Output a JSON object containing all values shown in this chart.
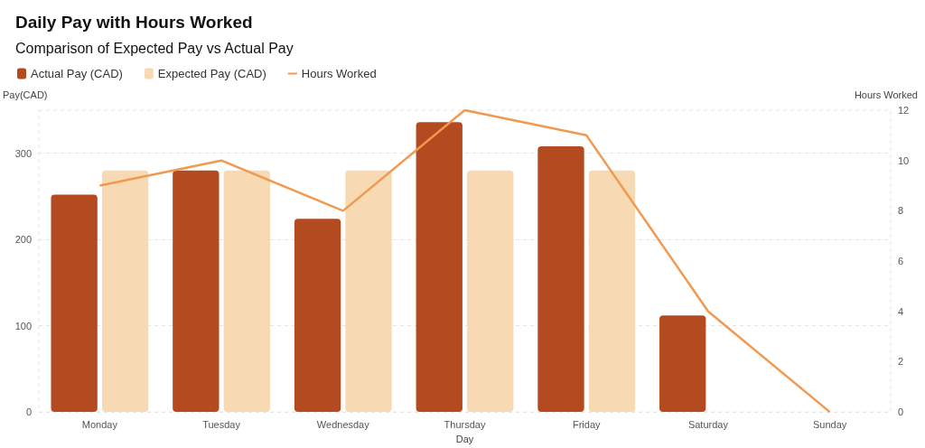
{
  "chart_data": {
    "type": "bar",
    "title": "Daily Pay with Hours Worked",
    "subtitle": "Comparison of Expected Pay vs Actual Pay",
    "xlabel": "Day",
    "ylabel": "Pay(CAD)",
    "y2label": "Hours Worked",
    "categories": [
      "Monday",
      "Tuesday",
      "Wednesday",
      "Thursday",
      "Friday",
      "Saturday",
      "Sunday"
    ],
    "series": [
      {
        "name": "Actual Pay (CAD)",
        "color": "#b34a20",
        "values": [
          252,
          280,
          224,
          336,
          308,
          112,
          null
        ]
      },
      {
        "name": "Expected Pay (CAD)",
        "color": "#f7d9b3",
        "values": [
          280,
          280,
          280,
          280,
          280,
          null,
          null
        ]
      },
      {
        "name": "Hours Worked",
        "type": "line",
        "axis": "y2",
        "color": "#f0994f",
        "values": [
          9,
          10,
          8,
          12,
          11,
          4,
          0
        ]
      }
    ],
    "ylim": [
      0,
      350
    ],
    "yticks": [
      0,
      100,
      200,
      300
    ],
    "y2lim": [
      0,
      12
    ],
    "y2ticks": [
      0,
      2,
      4,
      6,
      8,
      10,
      12
    ],
    "grid": "y",
    "legend": "top left",
    "marker": "none"
  }
}
